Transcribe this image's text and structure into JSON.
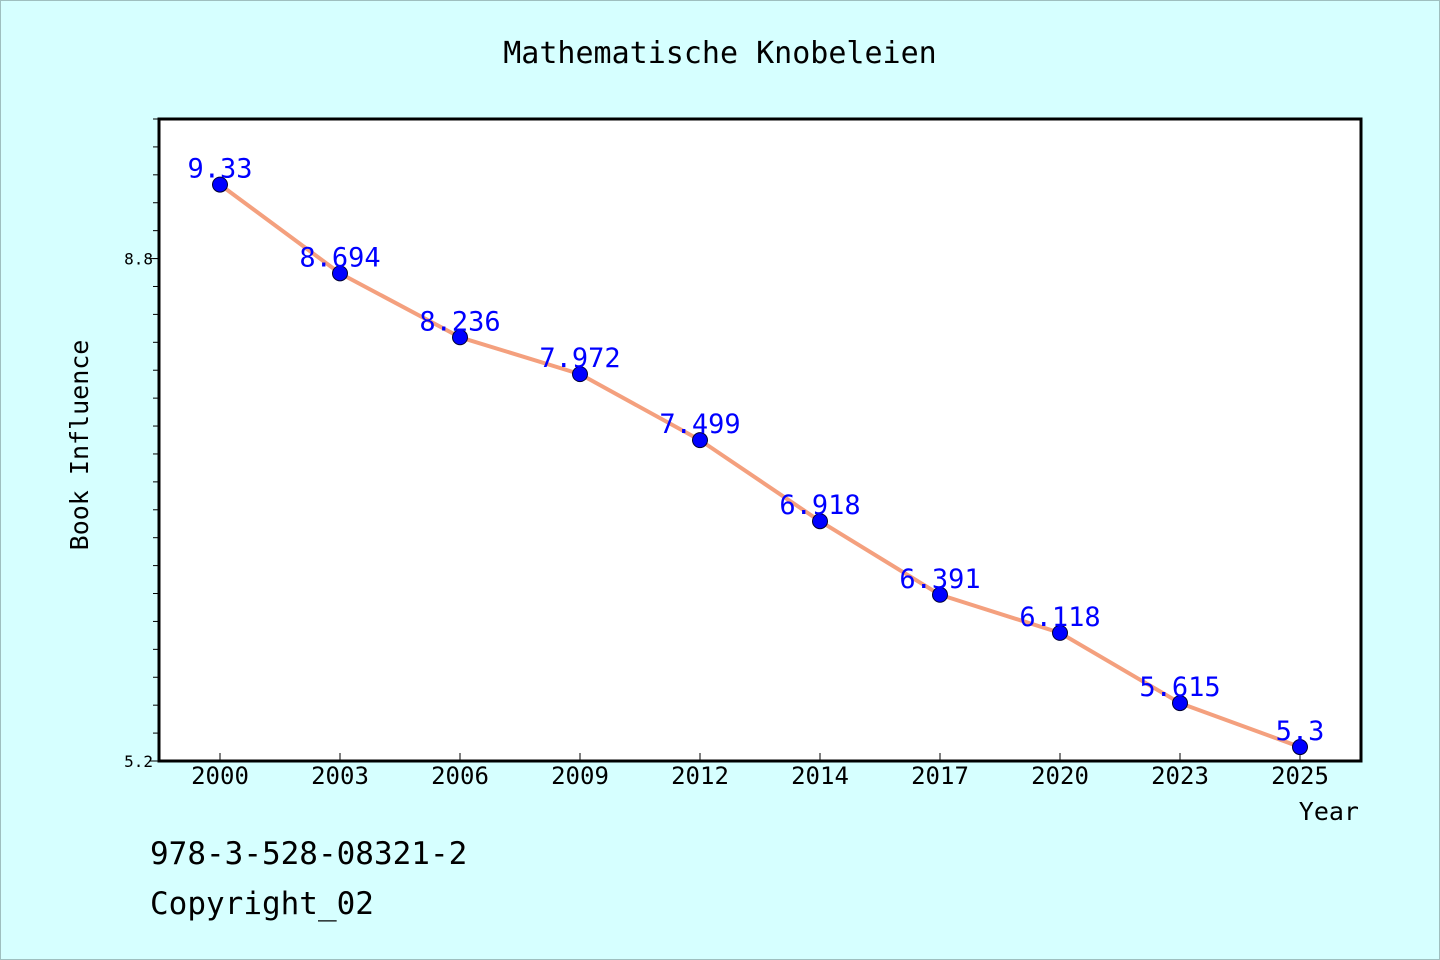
{
  "chart_data": {
    "type": "line",
    "title": "Mathematische Knobeleien",
    "xlabel": "Year",
    "ylabel": "Book Influence",
    "categories": [
      "2000",
      "2003",
      "2006",
      "2009",
      "2012",
      "2014",
      "2017",
      "2020",
      "2023",
      "2025"
    ],
    "series": [
      {
        "values": [
          9.33,
          8.694,
          8.236,
          7.972,
          7.499,
          6.918,
          6.391,
          6.118,
          5.615,
          5.3
        ],
        "line_color": "#f4a07e",
        "marker_color": "#0000ff",
        "label_color": "#0000ff"
      }
    ],
    "y_ticks": [
      {
        "value": 8.8,
        "label": "8.8"
      },
      {
        "value": 5.2,
        "label": "5.2"
      }
    ],
    "ylim": [
      5.2,
      9.8
    ],
    "grid": false,
    "legend": "none"
  },
  "footer": {
    "isbn": "978-3-528-08321-2",
    "copyright": "Copyright_02"
  },
  "colors": {
    "background": "#d6ffff",
    "plot_background": "#ffffff"
  }
}
